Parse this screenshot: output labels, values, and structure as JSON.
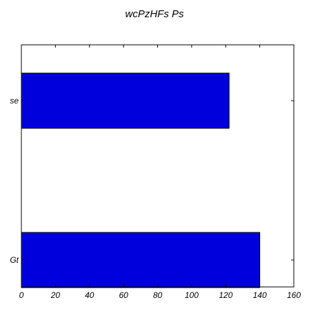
{
  "chart_data": {
    "type": "bar",
    "orientation": "horizontal",
    "title": "wcPzHFs Ps",
    "xlabel": "",
    "ylabel": "",
    "categories": [
      "se",
      "Gt"
    ],
    "values": [
      122,
      140
    ],
    "xlim": [
      0,
      160
    ],
    "xticks": [
      "0",
      "20",
      "40",
      "60",
      "80",
      "100",
      "120",
      "140",
      "160"
    ],
    "bar_color": "#0000dd",
    "grid": false,
    "legend": "none"
  }
}
